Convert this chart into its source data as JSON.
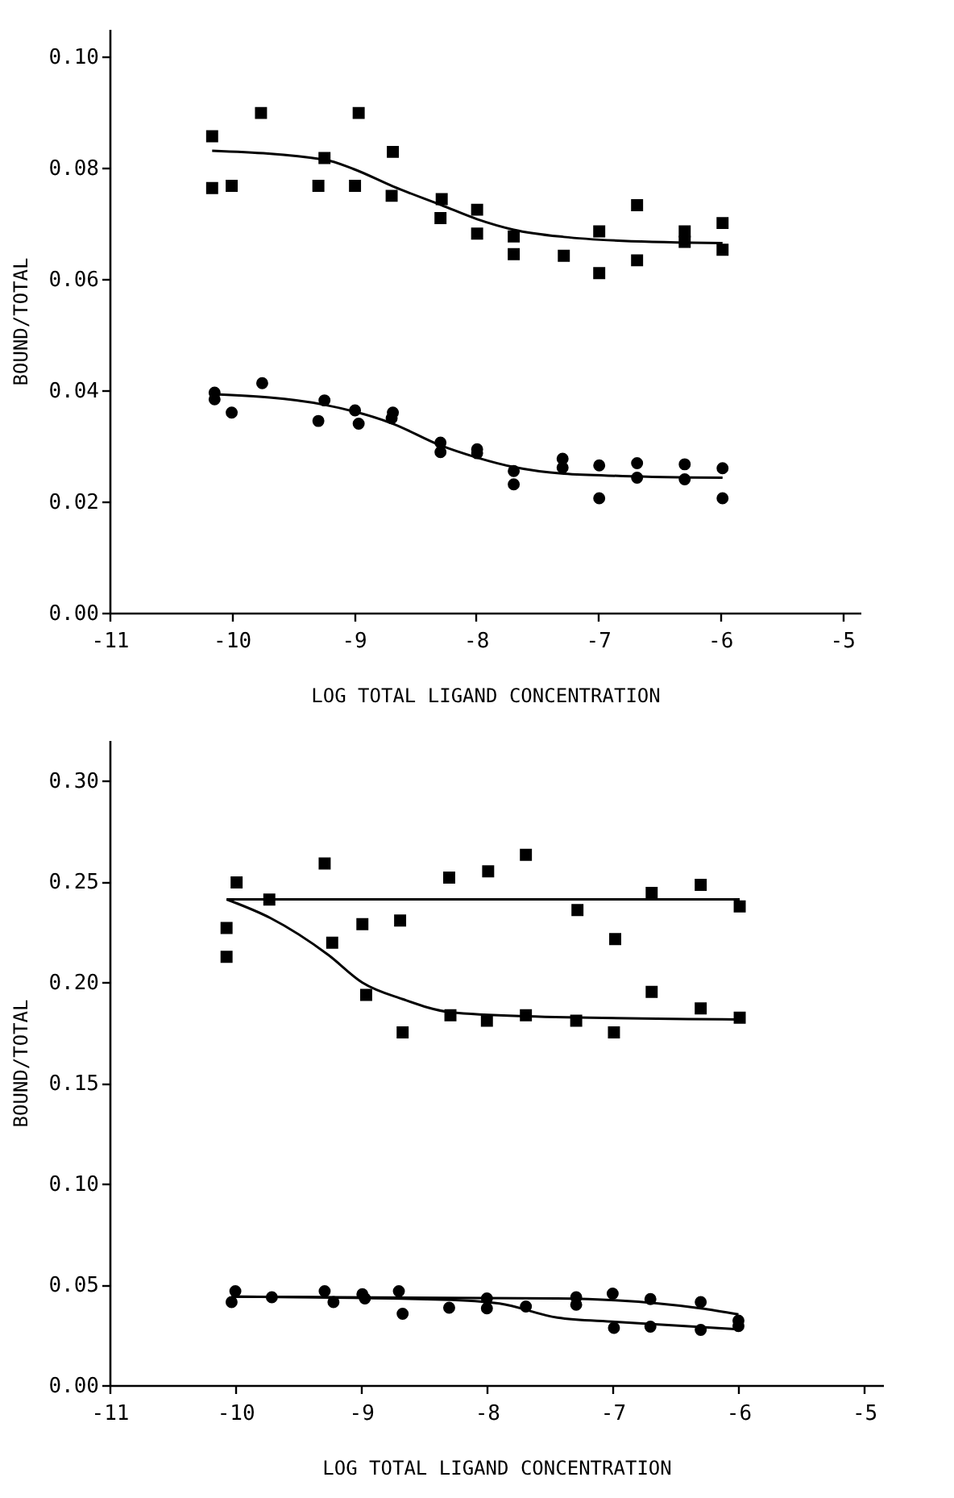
{
  "chart_data": [
    {
      "type": "scatter",
      "xlabel": "LOG TOTAL LIGAND CONCENTRATION",
      "ylabel": "BOUND/TOTAL",
      "xlim": [
        -11,
        -4.85
      ],
      "xticks": [
        -11,
        -10,
        -9,
        -8,
        -7,
        -6,
        -5
      ],
      "ylim": [
        0,
        0.105
      ],
      "yticks": [
        {
          "value": 0,
          "label": "0.00"
        },
        {
          "value": 0.02,
          "label": "0.02"
        },
        {
          "value": 0.04,
          "label": "0.04"
        },
        {
          "value": 0.06,
          "label": "0.06"
        },
        {
          "value": 0.08,
          "label": "0.08"
        },
        {
          "value": 0.1,
          "label": "0.10"
        }
      ],
      "grid": false,
      "series": [
        {
          "type": "scatter",
          "marker": "square",
          "color": "#000000",
          "x": [
            -10.16,
            -9.76,
            -9.24,
            -8.96,
            -8.68,
            -8.28,
            -7.99,
            -7.69,
            -7.28,
            -6.99,
            -6.68,
            -6.29,
            -5.98
          ],
          "values": [
            0.0857,
            0.0899,
            0.0818,
            0.0899,
            0.0829,
            0.0744,
            0.0682,
            0.0677,
            0.0642,
            0.0611,
            0.0634,
            0.0686,
            0.0653
          ]
        },
        {
          "type": "scatter",
          "marker": "square",
          "color": "#000000",
          "x": [
            -10.16,
            -10.0,
            -9.29,
            -8.99,
            -8.69,
            -8.29,
            -7.99,
            -7.69,
            -6.99,
            -6.68,
            -6.29,
            -5.98
          ],
          "values": [
            0.0764,
            0.0768,
            0.0768,
            0.0768,
            0.075,
            0.071,
            0.0725,
            0.0645,
            0.0686,
            0.0733,
            0.0667,
            0.0701
          ]
        },
        {
          "type": "line",
          "marker": "none",
          "color": "#000000",
          "x": [
            -10.16,
            -9.24,
            -9.0,
            -8.68,
            -8.28,
            -7.99,
            -7.69,
            -7.28,
            -6.8,
            -5.98
          ],
          "values": [
            0.0831,
            0.0815,
            0.0798,
            0.0767,
            0.0733,
            0.0708,
            0.0689,
            0.0676,
            0.0669,
            0.0665
          ]
        },
        {
          "type": "scatter",
          "marker": "circle",
          "color": "#000000",
          "x": [
            -10.14,
            -9.75,
            -9.24,
            -8.96,
            -8.68,
            -8.29,
            -7.99,
            -7.69,
            -7.29,
            -6.99,
            -6.68,
            -6.29,
            -5.98
          ],
          "values": [
            0.0396,
            0.0413,
            0.0382,
            0.034,
            0.036,
            0.0289,
            0.0287,
            0.0255,
            0.0261,
            0.0206,
            0.0269,
            0.024,
            0.0206
          ]
        },
        {
          "type": "scatter",
          "marker": "circle",
          "color": "#000000",
          "x": [
            -10.14,
            -10.0,
            -9.29,
            -8.99,
            -8.69,
            -8.29,
            -7.99,
            -7.69,
            -7.29,
            -6.99,
            -6.68,
            -6.29,
            -5.98
          ],
          "values": [
            0.0384,
            0.036,
            0.0345,
            0.0364,
            0.035,
            0.0306,
            0.0294,
            0.0231,
            0.0277,
            0.0265,
            0.0243,
            0.0267,
            0.026
          ]
        },
        {
          "type": "line",
          "marker": "none",
          "color": "#000000",
          "x": [
            -10.14,
            -9.24,
            -8.68,
            -8.29,
            -7.99,
            -7.69,
            -7.28,
            -6.8,
            -5.98
          ],
          "values": [
            0.0393,
            0.0374,
            0.034,
            0.0301,
            0.0279,
            0.0262,
            0.025,
            0.0246,
            0.0243
          ]
        }
      ]
    },
    {
      "type": "scatter",
      "xlabel": "LOG TOTAL LIGAND CONCENTRATION",
      "ylabel": "BOUND/TOTAL",
      "xlim": [
        -11,
        -4.85
      ],
      "xticks": [
        -11,
        -10,
        -9,
        -8,
        -7,
        -6,
        -5
      ],
      "ylim": [
        0,
        0.32
      ],
      "yticks": [
        {
          "value": 0,
          "label": "0.00"
        },
        {
          "value": 0.05,
          "label": "0.05"
        },
        {
          "value": 0.1,
          "label": "0.10"
        },
        {
          "value": 0.15,
          "label": "0.15"
        },
        {
          "value": 0.2,
          "label": "0.20"
        },
        {
          "value": 0.25,
          "label": "0.25"
        },
        {
          "value": 0.3,
          "label": "0.30"
        }
      ],
      "grid": false,
      "series": [
        {
          "type": "scatter",
          "marker": "square",
          "color": "#000000",
          "x": [
            -10.07,
            -9.73,
            -9.23,
            -8.96,
            -8.67,
            -8.29,
            -8.0,
            -7.69,
            -7.29,
            -6.99,
            -6.69,
            -6.3,
            -5.99
          ],
          "values": [
            0.2268,
            0.2409,
            0.2195,
            0.1936,
            0.175,
            0.1835,
            0.1808,
            0.1835,
            0.1808,
            0.175,
            0.1951,
            0.1869,
            0.1823
          ]
        },
        {
          "type": "scatter",
          "marker": "square",
          "color": "#000000",
          "x": [
            -10.07,
            -9.99,
            -9.29,
            -8.99,
            -8.69,
            -8.3,
            -7.99,
            -7.69,
            -7.28,
            -6.98,
            -6.69,
            -6.3,
            -5.99
          ],
          "values": [
            0.2125,
            0.2494,
            0.2588,
            0.2287,
            0.2305,
            0.2518,
            0.2549,
            0.2631,
            0.2357,
            0.2213,
            0.2442,
            0.2482,
            0.2375
          ]
        },
        {
          "type": "line",
          "marker": "none",
          "color": "#000000",
          "x": [
            -10.07,
            -5.99
          ],
          "values": [
            0.241,
            0.241
          ]
        },
        {
          "type": "line",
          "marker": "none",
          "color": "#000000",
          "x": [
            -10.07,
            -9.72,
            -9.26,
            -8.99,
            -8.67,
            -8.29,
            -7.69,
            -5.99
          ],
          "values": [
            0.241,
            0.2317,
            0.2134,
            0.1997,
            0.1915,
            0.185,
            0.183,
            0.1814
          ]
        },
        {
          "type": "scatter",
          "marker": "circle",
          "color": "#000000",
          "x": [
            -10.03,
            -9.71,
            -9.22,
            -8.97,
            -8.67,
            -8.3,
            -8.0,
            -7.69,
            -7.29,
            -6.99,
            -6.7,
            -6.3,
            -6.0
          ],
          "values": [
            0.0412,
            0.0436,
            0.0412,
            0.043,
            0.0354,
            0.0384,
            0.0381,
            0.039,
            0.0399,
            0.0284,
            0.029,
            0.0274,
            0.0293
          ]
        },
        {
          "type": "scatter",
          "marker": "circle",
          "color": "#000000",
          "x": [
            -10.0,
            -9.29,
            -8.99,
            -8.7,
            -8.0,
            -7.29,
            -7.0,
            -6.7,
            -6.3,
            -6.0
          ],
          "values": [
            0.0466,
            0.0466,
            0.0451,
            0.0466,
            0.043,
            0.0436,
            0.0454,
            0.0427,
            0.0412,
            0.032
          ]
        },
        {
          "type": "line",
          "marker": "none",
          "color": "#000000",
          "x": [
            -10.03,
            -7.44,
            -6.98,
            -6.3,
            -6.0
          ],
          "values": [
            0.0439,
            0.043,
            0.0421,
            0.0381,
            0.0351
          ]
        },
        {
          "type": "line",
          "marker": "none",
          "color": "#000000",
          "x": [
            -10.03,
            -8.35,
            -7.9,
            -7.44,
            -6.98,
            -6.0
          ],
          "values": [
            0.0439,
            0.0424,
            0.0405,
            0.0335,
            0.0314,
            0.0277
          ]
        }
      ]
    }
  ]
}
